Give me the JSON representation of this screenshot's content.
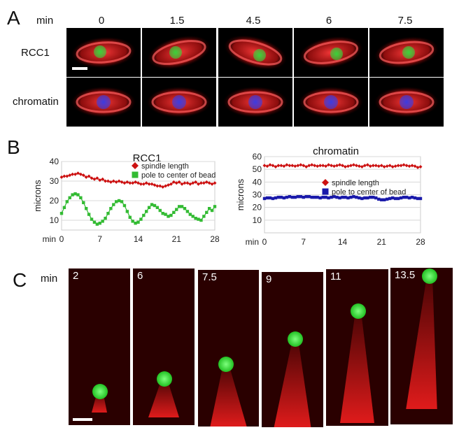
{
  "panels": {
    "a": "A",
    "b": "B",
    "c": "C"
  },
  "panel_a": {
    "time_unit": "min",
    "times": [
      "0",
      "1.5",
      "4.5",
      "6",
      "7.5"
    ],
    "rows": [
      {
        "label": "RCC1",
        "bead_color": "#3ad23a"
      },
      {
        "label": "chromatin",
        "bead_color": "#3b3be0"
      }
    ]
  },
  "panel_c": {
    "time_unit": "min",
    "frames": [
      "2",
      "6",
      "7.5",
      "9",
      "11",
      "13.5"
    ]
  },
  "chart_data": [
    {
      "type": "scatter",
      "title": "RCC1",
      "ylabel": "microns",
      "xlabel": "min",
      "x_ticks": [
        "0",
        "7",
        "14",
        "21",
        "28"
      ],
      "y_ticks": [
        "10",
        "20",
        "30",
        "40"
      ],
      "xlim": [
        0,
        28
      ],
      "ylim": [
        5,
        40
      ],
      "legend_placement": "top-right",
      "series": [
        {
          "name": "spindle length",
          "color": "#cc1111",
          "marker": "diamond",
          "x": [
            0,
            0.5,
            1,
            1.5,
            2,
            2.5,
            3,
            3.5,
            4,
            4.5,
            5,
            5.5,
            6,
            6.5,
            7,
            7.5,
            8,
            8.5,
            9,
            9.5,
            10,
            10.5,
            11,
            11.5,
            12,
            12.5,
            13,
            13.5,
            14,
            14.5,
            15,
            15.5,
            16,
            16.5,
            17,
            17.5,
            18,
            18.5,
            19,
            19.5,
            20,
            20.5,
            21,
            21.5,
            22,
            22.5,
            23,
            23.5,
            24,
            24.5,
            25,
            25.5,
            26,
            26.5,
            27,
            27.5,
            28
          ],
          "y": [
            32,
            32.5,
            32.5,
            33,
            33.5,
            33.5,
            34,
            33.5,
            33,
            32,
            32.5,
            31.5,
            31,
            31.5,
            30.5,
            31,
            30,
            30,
            29.5,
            30,
            29.5,
            30,
            29.5,
            29,
            29.5,
            29,
            29,
            29.5,
            29,
            28.5,
            28.5,
            29,
            28.5,
            28.5,
            28,
            27.5,
            27.5,
            27,
            27.5,
            28,
            28.5,
            29.5,
            29,
            29.5,
            28.5,
            29,
            29,
            28.5,
            29,
            29.5,
            28.5,
            29,
            29,
            29.5,
            29,
            28.5,
            29
          ]
        },
        {
          "name": "pole to center of bead",
          "color": "#33bb33",
          "marker": "square",
          "x": [
            0,
            0.5,
            1,
            1.5,
            2,
            2.5,
            3,
            3.5,
            4,
            4.5,
            5,
            5.5,
            6,
            6.5,
            7,
            7.5,
            8,
            8.5,
            9,
            9.5,
            10,
            10.5,
            11,
            11.5,
            12,
            12.5,
            13,
            13.5,
            14,
            14.5,
            15,
            15.5,
            16,
            16.5,
            17,
            17.5,
            18,
            18.5,
            19,
            19.5,
            20,
            20.5,
            21,
            21.5,
            22,
            22.5,
            23,
            23.5,
            24,
            24.5,
            25,
            25.5,
            26,
            26.5,
            27,
            27.5,
            28
          ],
          "y": [
            13.5,
            16.5,
            19.5,
            21.5,
            23,
            23.5,
            23,
            21.5,
            19,
            16,
            13,
            10.5,
            9,
            8,
            8.5,
            9.5,
            11,
            13.5,
            16,
            18,
            19.5,
            20,
            19.5,
            17.5,
            14.5,
            11.5,
            9.5,
            8.5,
            9,
            10.5,
            12.5,
            14.5,
            16.5,
            18,
            17.5,
            16.5,
            15,
            13.5,
            13,
            12,
            12.5,
            14,
            15.5,
            17,
            17,
            16,
            14.5,
            13,
            12,
            11,
            10.5,
            10,
            12,
            14,
            16,
            15,
            17
          ]
        }
      ]
    },
    {
      "type": "scatter",
      "title": "chromatin",
      "ylabel": "microns",
      "xlabel": "min",
      "x_ticks": [
        "0",
        "7",
        "14",
        "21",
        "28"
      ],
      "y_ticks": [
        "10",
        "20",
        "30",
        "40",
        "50",
        "60"
      ],
      "xlim": [
        0,
        28
      ],
      "ylim": [
        0,
        60
      ],
      "legend_placement": "center-right",
      "series": [
        {
          "name": "spindle length",
          "color": "#cc1111",
          "marker": "diamond",
          "x": [
            0,
            0.5,
            1,
            1.5,
            2,
            2.5,
            3,
            3.5,
            4,
            4.5,
            5,
            5.5,
            6,
            6.5,
            7,
            7.5,
            8,
            8.5,
            9,
            9.5,
            10,
            10.5,
            11,
            11.5,
            12,
            12.5,
            13,
            13.5,
            14,
            14.5,
            15,
            15.5,
            16,
            16.5,
            17,
            17.5,
            18,
            18.5,
            19,
            19.5,
            20,
            20.5,
            21,
            21.5,
            22,
            22.5,
            23,
            23.5,
            24,
            24.5,
            25,
            25.5,
            26,
            26.5,
            27,
            27.5,
            28
          ],
          "y": [
            53,
            52.5,
            53.5,
            53,
            52,
            53,
            53,
            52.5,
            53.5,
            53,
            53,
            52.5,
            53,
            53.5,
            53,
            52,
            53,
            53.5,
            53,
            52.5,
            53,
            53,
            52.5,
            53.5,
            53,
            52.5,
            53,
            53.5,
            53,
            52,
            52.5,
            53,
            53.5,
            53,
            52.5,
            52,
            53,
            53.5,
            52.5,
            53,
            53,
            52.5,
            53,
            52,
            52.5,
            53,
            52,
            52.5,
            53,
            53,
            53.5,
            53,
            52.5,
            53,
            52.5,
            51.5,
            52
          ]
        },
        {
          "name": "pole to center of bead",
          "color": "#1a1aaa",
          "marker": "square",
          "x": [
            0,
            0.5,
            1,
            1.5,
            2,
            2.5,
            3,
            3.5,
            4,
            4.5,
            5,
            5.5,
            6,
            6.5,
            7,
            7.5,
            8,
            8.5,
            9,
            9.5,
            10,
            10.5,
            11,
            11.5,
            12,
            12.5,
            13,
            13.5,
            14,
            14.5,
            15,
            15.5,
            16,
            16.5,
            17,
            17.5,
            18,
            18.5,
            19,
            19.5,
            20,
            20.5,
            21,
            21.5,
            22,
            22.5,
            23,
            23.5,
            24,
            24.5,
            25,
            25.5,
            26,
            26.5,
            27,
            27.5,
            28
          ],
          "y": [
            27,
            27.5,
            27.5,
            27,
            27.5,
            28,
            28,
            27.5,
            28,
            28.5,
            28,
            28,
            28.5,
            28.5,
            28,
            28.5,
            28.5,
            28,
            28,
            28,
            27.5,
            28,
            28,
            27.5,
            28,
            28.5,
            28,
            27.5,
            28,
            28,
            27.5,
            28,
            28.5,
            28,
            27.5,
            27,
            27.5,
            27.5,
            28,
            28,
            27.5,
            26.5,
            26,
            26,
            26.5,
            27,
            27.5,
            27,
            27,
            27.5,
            28,
            28,
            27.5,
            28,
            27.5,
            27,
            27
          ]
        }
      ]
    }
  ]
}
